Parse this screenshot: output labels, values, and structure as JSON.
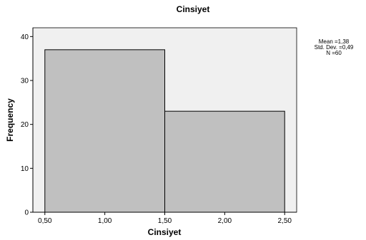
{
  "chart_data": {
    "type": "bar",
    "title": "Cinsiyet",
    "xlabel": "Cinsiyet",
    "ylabel": "Frequency",
    "xlim": [
      0.4,
      2.6
    ],
    "ylim": [
      0,
      42
    ],
    "x_ticks": [
      0.5,
      1.0,
      1.5,
      2.0,
      2.5
    ],
    "x_tick_labels": [
      "0,50",
      "1,00",
      "1,50",
      "2,00",
      "2,50"
    ],
    "y_ticks": [
      0,
      10,
      20,
      30,
      40
    ],
    "y_tick_labels": [
      "0",
      "10",
      "20",
      "30",
      "40"
    ],
    "bins": [
      {
        "x0": 0.5,
        "x1": 1.5,
        "value": 37
      },
      {
        "x0": 1.5,
        "x1": 2.5,
        "value": 23
      }
    ],
    "stats": [
      "Mean =1,38",
      "Std. Dev. =0,49",
      "N =60"
    ],
    "grid": false,
    "colors": {
      "plot_bg": "#f0f0f0",
      "bar_fill": "#c0c0c0",
      "bar_stroke": "#000000",
      "text": "#000000"
    }
  }
}
